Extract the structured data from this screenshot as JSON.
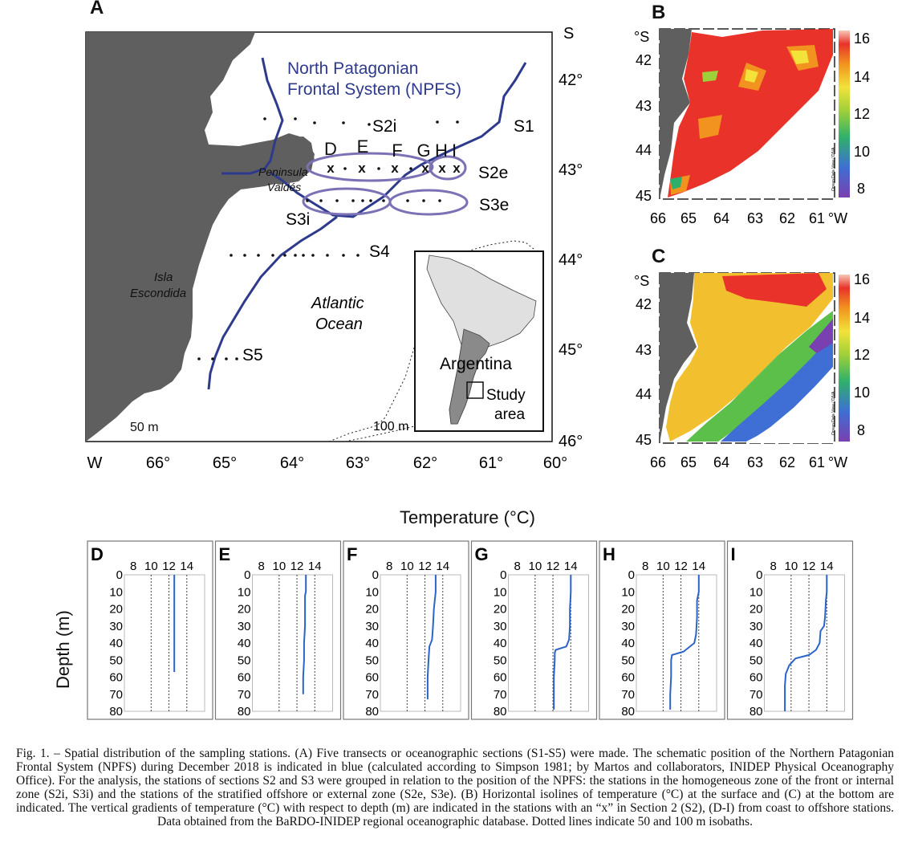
{
  "panel_labels": {
    "a": "A",
    "b": "B",
    "c": "C"
  },
  "map_a": {
    "lon_ticks": [
      "66°",
      "65°",
      "64°",
      "63°",
      "62°",
      "61°",
      "60°"
    ],
    "lon_hemisphere": "W",
    "lat_ticks": [
      "42°",
      "43°",
      "44°",
      "45°",
      "46°"
    ],
    "lat_hemisphere": "S",
    "front_label_line1": "North Patagonian",
    "front_label_line2": "Frontal System (NPFS)",
    "sections": {
      "s1": "S1",
      "s2i": "S2i",
      "s2e": "S2e",
      "s3i": "S3i",
      "s3e": "S3e",
      "s4": "S4",
      "s5": "S5"
    },
    "station_letters": [
      "D",
      "E",
      "F",
      "G",
      "H",
      "I"
    ],
    "station_mark": "x",
    "peninsula_line1": "Peninsula",
    "peninsula_line2": "Valdés",
    "island_line1": "Isla",
    "island_line2": "Escondida",
    "ocean_line1": "Atlantic",
    "ocean_line2": "Ocean",
    "isobath_50": "50 m",
    "isobath_100": "100 m",
    "inset_country": "Argentina",
    "inset_study_line1": "Study",
    "inset_study_line2": "area"
  },
  "map_b": {
    "lat_unit": "°S",
    "lat_ticks": [
      "42",
      "43",
      "44",
      "45"
    ],
    "lon_ticks": [
      "66",
      "65",
      "64",
      "63",
      "62",
      "61"
    ],
    "lon_unit": "°W",
    "colorbar_ticks": [
      "16",
      "14",
      "12",
      "10",
      "8"
    ],
    "credit": "Ocean Data View / DIVA"
  },
  "map_c": {
    "lat_unit": "°S",
    "lat_ticks": [
      "42",
      "43",
      "44",
      "45"
    ],
    "lon_ticks": [
      "66",
      "65",
      "64",
      "63",
      "62",
      "61"
    ],
    "lon_unit": "°W",
    "colorbar_ticks": [
      "16",
      "14",
      "12",
      "10",
      "8"
    ],
    "credit": "Ocean Data View / DIVA"
  },
  "profiles_title": "Temperature (°C)",
  "depth_label": "Depth (m)",
  "chart_data": {
    "type": "line",
    "xlabel": "Temperature (°C)",
    "ylabel": "Depth (m)",
    "x_ticks": [
      8,
      10,
      12,
      14
    ],
    "y_ticks": [
      0,
      10,
      20,
      30,
      40,
      50,
      60,
      70,
      80
    ],
    "xlim": [
      7,
      16
    ],
    "ylim": [
      0,
      80
    ],
    "y_inverted": true,
    "panels": [
      {
        "label": "D",
        "points": [
          [
            12.6,
            0
          ],
          [
            12.6,
            10
          ],
          [
            12.6,
            20
          ],
          [
            12.6,
            30
          ],
          [
            12.6,
            40
          ],
          [
            12.6,
            50
          ],
          [
            12.6,
            57
          ]
        ]
      },
      {
        "label": "E",
        "points": [
          [
            13.0,
            0
          ],
          [
            13.0,
            10
          ],
          [
            12.9,
            12
          ],
          [
            12.9,
            20
          ],
          [
            12.9,
            30
          ],
          [
            12.8,
            40
          ],
          [
            12.8,
            50
          ],
          [
            12.7,
            60
          ],
          [
            12.7,
            70
          ]
        ]
      },
      {
        "label": "F",
        "points": [
          [
            13.2,
            0
          ],
          [
            13.2,
            10
          ],
          [
            13.0,
            20
          ],
          [
            12.9,
            30
          ],
          [
            12.8,
            38
          ],
          [
            12.5,
            42
          ],
          [
            12.4,
            50
          ],
          [
            12.3,
            60
          ],
          [
            12.3,
            73
          ]
        ]
      },
      {
        "label": "G",
        "points": [
          [
            14.0,
            0
          ],
          [
            14.0,
            10
          ],
          [
            13.9,
            20
          ],
          [
            13.9,
            30
          ],
          [
            13.8,
            38
          ],
          [
            13.5,
            42
          ],
          [
            12.3,
            44
          ],
          [
            12.2,
            46
          ],
          [
            12.2,
            50
          ],
          [
            12.1,
            60
          ],
          [
            12.1,
            70
          ],
          [
            12.1,
            79
          ]
        ]
      },
      {
        "label": "H",
        "points": [
          [
            14.0,
            0
          ],
          [
            14.0,
            10
          ],
          [
            13.8,
            15
          ],
          [
            13.8,
            25
          ],
          [
            13.7,
            35
          ],
          [
            13.5,
            40
          ],
          [
            12.3,
            45
          ],
          [
            11.0,
            47
          ],
          [
            10.9,
            50
          ],
          [
            10.9,
            60
          ],
          [
            10.8,
            70
          ],
          [
            10.8,
            79
          ]
        ]
      },
      {
        "label": "I",
        "points": [
          [
            14.0,
            0
          ],
          [
            14.0,
            10
          ],
          [
            13.9,
            15
          ],
          [
            13.8,
            25
          ],
          [
            13.7,
            30
          ],
          [
            13.3,
            33
          ],
          [
            13.2,
            40
          ],
          [
            12.8,
            44
          ],
          [
            12.0,
            47
          ],
          [
            10.5,
            49
          ],
          [
            9.8,
            53
          ],
          [
            9.4,
            58
          ],
          [
            9.3,
            65
          ],
          [
            9.3,
            80
          ]
        ]
      }
    ]
  },
  "caption": "Fig. 1. – Spatial distribution of the sampling stations. (A) Five transects or oceanographic sections (S1-S5) were made. The schematic position of the Northern Patagonian Frontal System (NPFS) during December 2018 is indicated in blue (calculated according to Simpson 1981; by Martos and collaborators, INIDEP Physical Oceanography Office). For the analysis, the stations of sections S2 and S3 were grouped in relation to the position of the NPFS: the stations in the homogeneous zone of the front or internal zone (S2i, S3i) and the stations of the stratified offshore or external zone (S2e, S3e). (B) Horizontal isolines of temperature (°C) at the surface and (C) at the bottom are indicated. The vertical gradients of temperature (°C) with respect to depth (m) are indicated in the stations with an “x” in Section 2 (S2), (D-I) from coast to offshore stations. Data obtained from the BaRDO-INIDEP regional oceanographic database. Dotted lines indicate 50 and 100 m isobaths."
}
